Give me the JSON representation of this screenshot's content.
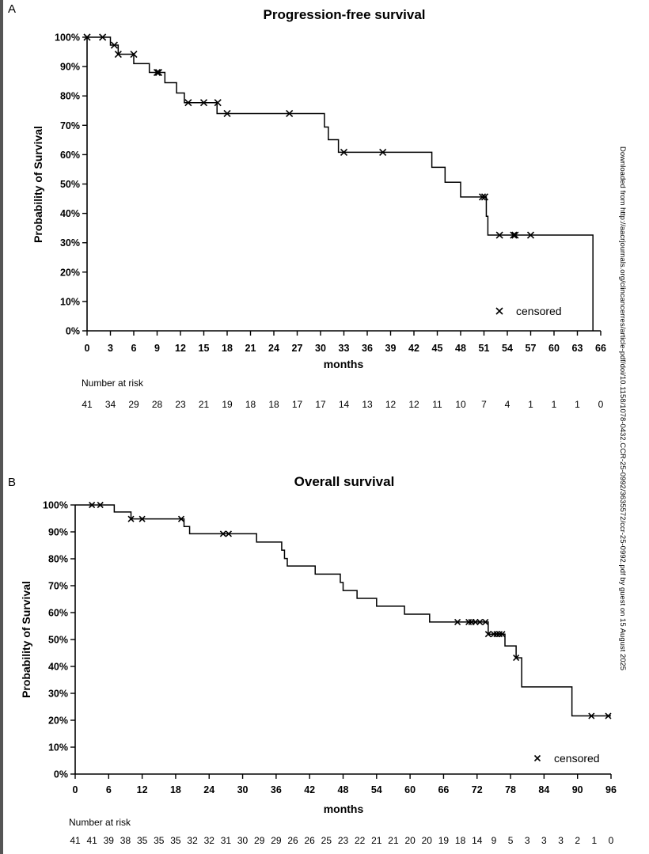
{
  "side_note": "Downloaded from http://aacrjournals.org/clincancerres/article-pdf/doi/10.1158/1078-0432.CCR-25-0992/3635572/ccr-25-0992.pdf by guest on 15 August 2025",
  "chart_data": [
    {
      "panel": "A",
      "type": "line",
      "step": true,
      "title": "Progression-free survival",
      "xlabel": "months",
      "ylabel": "Probability of Survival",
      "xlim": [
        0,
        66
      ],
      "ylim": [
        0,
        100
      ],
      "xticks": [
        0,
        3,
        6,
        9,
        12,
        15,
        18,
        21,
        24,
        27,
        30,
        33,
        36,
        39,
        42,
        45,
        48,
        51,
        54,
        57,
        60,
        63,
        66
      ],
      "yticks": [
        0,
        10,
        20,
        30,
        40,
        50,
        60,
        70,
        80,
        90,
        100
      ],
      "ytick_labels": [
        "0%",
        "10%",
        "20%",
        "30%",
        "40%",
        "50%",
        "60%",
        "70%",
        "80%",
        "90%",
        "100%"
      ],
      "grid": false,
      "legend": {
        "marker": "×",
        "label": "censored",
        "position": "bottom-right"
      },
      "series": [
        {
          "x": [
            0,
            3,
            4,
            6,
            8,
            10,
            11.5,
            12.5,
            16.7,
            30.5,
            31,
            31.8,
            32.3,
            44.3,
            46,
            48,
            51.3,
            51.5,
            65
          ],
          "y": [
            100,
            97.3,
            94.2,
            91,
            88,
            84.5,
            81,
            77.7,
            74,
            69.4,
            65.1,
            65.1,
            60.8,
            55.7,
            50.6,
            45.6,
            39,
            32.6,
            0
          ]
        }
      ],
      "censored": [
        [
          0,
          100
        ],
        [
          2,
          100
        ],
        [
          3.5,
          97.3
        ],
        [
          4,
          94.2
        ],
        [
          6,
          94.2
        ],
        [
          9,
          88
        ],
        [
          9.2,
          88
        ],
        [
          13,
          77.7
        ],
        [
          15,
          77.7
        ],
        [
          16.8,
          77.7
        ],
        [
          18,
          74
        ],
        [
          26,
          74
        ],
        [
          33,
          60.8
        ],
        [
          38,
          60.8
        ],
        [
          50.8,
          45.6
        ],
        [
          51.1,
          45.6
        ],
        [
          53,
          32.6
        ],
        [
          54.8,
          32.6
        ],
        [
          55,
          32.6
        ],
        [
          57,
          32.6
        ]
      ],
      "risk_label": "Number at risk",
      "risk_times": [
        0,
        3,
        6,
        9,
        12,
        15,
        18,
        21,
        24,
        27,
        30,
        33,
        36,
        39,
        42,
        45,
        48,
        51,
        54,
        57,
        60,
        63,
        66
      ],
      "risk_counts": [
        "41",
        "34",
        "29",
        "28",
        "23",
        "21",
        "19",
        "18",
        "18",
        "17",
        "17",
        "14",
        "13",
        "12",
        "12",
        "11",
        "10",
        "7",
        "4",
        "1",
        "1",
        "1",
        "0"
      ]
    },
    {
      "panel": "B",
      "type": "line",
      "step": true,
      "title": "Overall survival",
      "xlabel": "months",
      "ylabel": "Probability of Survival",
      "xlim": [
        0,
        96
      ],
      "ylim": [
        0,
        100
      ],
      "xticks": [
        0,
        6,
        12,
        18,
        24,
        30,
        36,
        42,
        48,
        54,
        60,
        66,
        72,
        78,
        84,
        90,
        96
      ],
      "yticks": [
        0,
        10,
        20,
        30,
        40,
        50,
        60,
        70,
        80,
        90,
        100
      ],
      "ytick_labels": [
        "0%",
        "10%",
        "20%",
        "30%",
        "40%",
        "50%",
        "60%",
        "70%",
        "80%",
        "90%",
        "100%"
      ],
      "grid": false,
      "legend": {
        "marker": "×",
        "label": "censored",
        "position": "bottom-right"
      },
      "series": [
        {
          "x": [
            0,
            7,
            10,
            19.5,
            20.5,
            32.5,
            37,
            37.5,
            38,
            43,
            47.5,
            48,
            50.5,
            54,
            59,
            63.5,
            74,
            77,
            77.5,
            79,
            80,
            89,
            96
          ],
          "y": [
            100,
            97.4,
            94.8,
            92,
            89.3,
            86.2,
            83.2,
            80.1,
            77.3,
            74.3,
            71.2,
            68.2,
            65.3,
            62.4,
            59.4,
            56.5,
            52,
            47.6,
            47.6,
            43.2,
            32.4,
            21.6,
            21.6
          ]
        }
      ],
      "censored": [
        [
          3,
          100
        ],
        [
          4.5,
          100
        ],
        [
          10,
          94.8
        ],
        [
          12,
          94.8
        ],
        [
          19,
          94.8
        ],
        [
          26.5,
          89.3
        ],
        [
          27.5,
          89.3
        ],
        [
          68.5,
          56.5
        ],
        [
          70.5,
          56.5
        ],
        [
          71,
          56.5
        ],
        [
          71.7,
          56.5
        ],
        [
          72.5,
          56.5
        ],
        [
          73.5,
          56.5
        ],
        [
          74,
          52
        ],
        [
          75,
          52
        ],
        [
          75.5,
          52
        ],
        [
          76,
          52
        ],
        [
          76.5,
          52
        ],
        [
          79,
          43.2
        ],
        [
          92.5,
          21.6
        ],
        [
          95.5,
          21.6
        ]
      ],
      "risk_label": "Number at risk",
      "risk_times": [
        0,
        3,
        6,
        9,
        12,
        15,
        18,
        21,
        24,
        27,
        30,
        33,
        36,
        39,
        42,
        45,
        48,
        51,
        54,
        57,
        60,
        63,
        66,
        69,
        72,
        75,
        78,
        81,
        84,
        87,
        90,
        93,
        96
      ],
      "risk_counts": [
        "41",
        "41",
        "39",
        "38",
        "35",
        "35",
        "35",
        "32",
        "32",
        "31",
        "30",
        "29",
        "29",
        "26",
        "26",
        "25",
        "23",
        "22",
        "21",
        "21",
        "20",
        "20",
        "19",
        "18",
        "14",
        "9",
        "5",
        "3",
        "3",
        "3",
        "2",
        "1",
        "0"
      ]
    }
  ]
}
